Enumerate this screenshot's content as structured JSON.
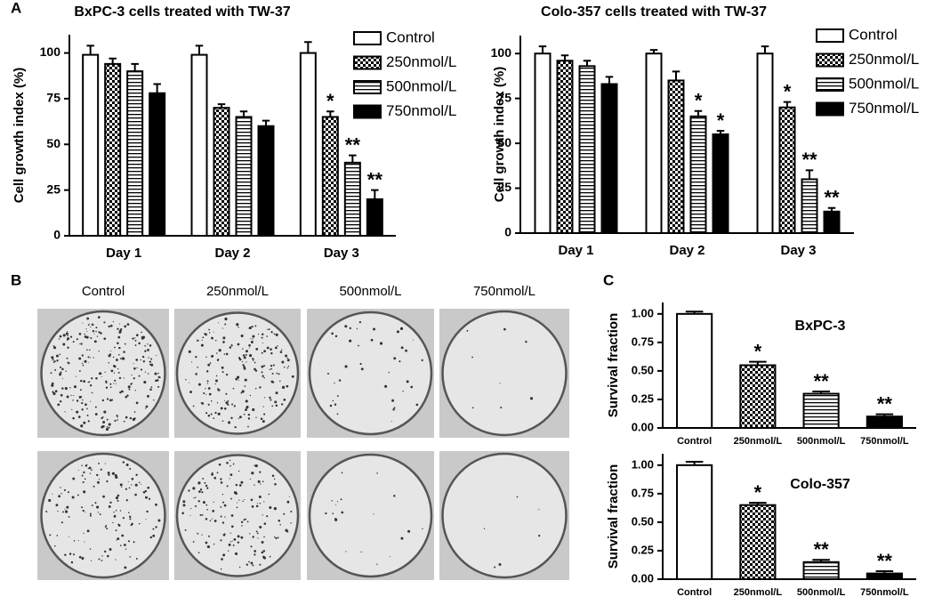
{
  "panel_labels": [
    "A",
    "B",
    "C"
  ],
  "dishes": {
    "column_labels": [
      "Control",
      "250nmol/L",
      "500nmol/L",
      "750nmol/L"
    ]
  },
  "chart_data": [
    {
      "type": "bar",
      "title": "BxPC-3 cells treated with TW-37",
      "y_label": "Cell growth index (%)",
      "categories": [
        "Day 1",
        "Day 2",
        "Day 3"
      ],
      "series": [
        {
          "name": "Control",
          "color": "#000000",
          "pattern": "none",
          "values": [
            99,
            99,
            100
          ],
          "errors": [
            5,
            5,
            6
          ],
          "significance": [
            null,
            null,
            null
          ]
        },
        {
          "name": "250nmol/L",
          "color": "#000000",
          "pattern": "checker",
          "values": [
            94,
            70,
            65
          ],
          "errors": [
            3,
            2,
            3
          ],
          "significance": [
            null,
            null,
            "*"
          ]
        },
        {
          "name": "500nmol/L",
          "color": "#000000",
          "pattern": "hstripes",
          "values": [
            90,
            65,
            40
          ],
          "errors": [
            4,
            3,
            4
          ],
          "significance": [
            null,
            null,
            "**"
          ]
        },
        {
          "name": "750nmol/L",
          "color": "#000000",
          "pattern": "solid",
          "values": [
            78,
            60,
            20
          ],
          "errors": [
            5,
            3,
            5
          ],
          "significance": [
            null,
            null,
            "**"
          ]
        }
      ],
      "ylim": [
        0,
        110
      ],
      "yticks": [
        0,
        25,
        50,
        75,
        100
      ],
      "grid": false,
      "legend": "right"
    },
    {
      "type": "bar",
      "title": "Colo-357 cells treated with TW-37",
      "y_label": "Cell growth index (%)",
      "categories": [
        "Day 1",
        "Day 2",
        "Day 3"
      ],
      "series": [
        {
          "name": "Control",
          "color": "#000000",
          "pattern": "none",
          "values": [
            100,
            100,
            100
          ],
          "errors": [
            4,
            2,
            4
          ],
          "significance": [
            null,
            null,
            null
          ]
        },
        {
          "name": "250nmol/L",
          "color": "#000000",
          "pattern": "checker",
          "values": [
            96,
            85,
            70
          ],
          "errors": [
            3,
            5,
            3
          ],
          "significance": [
            null,
            null,
            "*"
          ]
        },
        {
          "name": "500nmol/L",
          "color": "#000000",
          "pattern": "hstripes",
          "values": [
            93,
            65,
            30
          ],
          "errors": [
            3,
            3,
            5
          ],
          "significance": [
            null,
            "*",
            "**"
          ]
        },
        {
          "name": "750nmol/L",
          "color": "#000000",
          "pattern": "solid",
          "values": [
            83,
            55,
            12
          ],
          "errors": [
            4,
            2,
            2
          ],
          "significance": [
            null,
            "*",
            "**"
          ]
        }
      ],
      "ylim": [
        0,
        110
      ],
      "yticks": [
        0,
        25,
        50,
        75,
        100
      ],
      "grid": false,
      "legend": "right"
    },
    {
      "type": "bar",
      "y_label": "Survival fraction",
      "annotation": "BxPC-3",
      "categories": [
        "Control",
        "250nmol/L",
        "500nmol/L",
        "750nmol/L"
      ],
      "values": [
        1.0,
        0.55,
        0.3,
        0.1
      ],
      "errors": [
        0.02,
        0.03,
        0.02,
        0.02
      ],
      "significance": [
        null,
        "*",
        "**",
        "**"
      ],
      "color": "#000000",
      "patterns": [
        "none",
        "checker",
        "hstripes",
        "solid"
      ],
      "ylim": [
        0,
        1.1
      ],
      "yticks": [
        {
          "value": 0,
          "label": "0.00"
        },
        {
          "value": 0.25,
          "label": "0.25"
        },
        {
          "value": 0.5,
          "label": "0.50"
        },
        {
          "value": 0.75,
          "label": "0.75"
        },
        {
          "value": 1,
          "label": "1.00"
        }
      ],
      "grid": false
    },
    {
      "type": "bar",
      "y_label": "Survival fraction",
      "annotation": "Colo-357",
      "categories": [
        "Control",
        "250nmol/L",
        "500nmol/L",
        "750nmol/L"
      ],
      "values": [
        1.0,
        0.65,
        0.15,
        0.05
      ],
      "errors": [
        0.03,
        0.02,
        0.02,
        0.02
      ],
      "significance": [
        null,
        "*",
        "**",
        "**"
      ],
      "color": "#000000",
      "patterns": [
        "none",
        "checker",
        "hstripes",
        "solid"
      ],
      "ylim": [
        0,
        1.1
      ],
      "yticks": [
        {
          "value": 0,
          "label": "0.00"
        },
        {
          "value": 0.25,
          "label": "0.25"
        },
        {
          "value": 0.5,
          "label": "0.50"
        },
        {
          "value": 0.75,
          "label": "0.75"
        },
        {
          "value": 1,
          "label": "1.00"
        }
      ],
      "grid": false
    }
  ]
}
